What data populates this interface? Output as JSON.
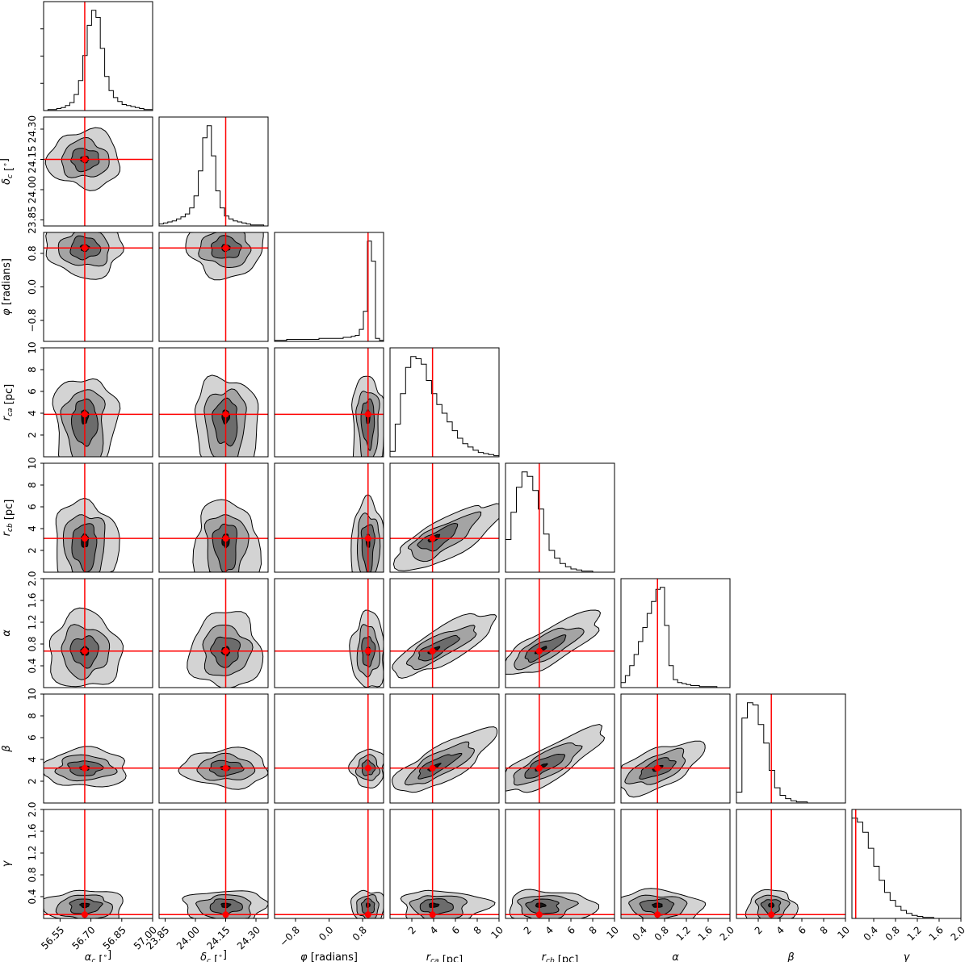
{
  "chart_data": {
    "type": "corner",
    "title": "",
    "parameters": [
      {
        "key": "ac",
        "label": "α_c [°]",
        "range": [
          56.47,
          57.0
        ],
        "ticks": [
          56.55,
          56.7,
          56.85,
          57.0
        ],
        "tick_labels": [
          "56.55",
          "56.70",
          "56.85",
          "57.00"
        ],
        "truth": 56.67
      },
      {
        "key": "dc",
        "label": "δ_c [°]",
        "range": [
          23.82,
          24.36
        ],
        "ticks": [
          23.85,
          24.0,
          24.15,
          24.3
        ],
        "tick_labels": [
          "23.85",
          "24.00",
          "24.15",
          "24.30"
        ],
        "truth": 24.15
      },
      {
        "key": "phi",
        "label": "φ [radians]",
        "range": [
          -1.3,
          1.3
        ],
        "ticks": [
          -0.8,
          0.0,
          0.8
        ],
        "tick_labels": [
          "−0.8",
          "0.0",
          "0.8"
        ],
        "truth": 0.93
      },
      {
        "key": "rca",
        "label": "r_ca [pc]",
        "range": [
          0,
          10
        ],
        "ticks": [
          2,
          4,
          6,
          8,
          10
        ],
        "tick_labels": [
          "2",
          "4",
          "6",
          "8",
          "10"
        ],
        "truth": 3.9
      },
      {
        "key": "rcb",
        "label": "r_cb [pc]",
        "range": [
          0,
          10
        ],
        "ticks": [
          2,
          4,
          6,
          8,
          10
        ],
        "tick_labels": [
          "2",
          "4",
          "6",
          "8",
          "10"
        ],
        "truth": 3.1
      },
      {
        "key": "al",
        "label": "α",
        "range": [
          0,
          2
        ],
        "ticks": [
          0.4,
          0.8,
          1.2,
          1.6,
          2.0
        ],
        "tick_labels": [
          "0.4",
          "0.8",
          "1.2",
          "1.6",
          "2.0"
        ],
        "truth": 0.67
      },
      {
        "key": "be",
        "label": "β",
        "range": [
          0,
          10
        ],
        "ticks": [
          2,
          4,
          6,
          8,
          10
        ],
        "tick_labels": [
          "2",
          "4",
          "6",
          "8",
          "10"
        ],
        "truth": 3.2
      },
      {
        "key": "ga",
        "label": "γ",
        "range": [
          0,
          2
        ],
        "ticks": [
          0.4,
          0.8,
          1.2,
          1.6,
          2.0
        ],
        "tick_labels": [
          "0.4",
          "0.8",
          "1.2",
          "1.6",
          "2.0"
        ],
        "truth": 0.07
      }
    ],
    "histograms": {
      "ac": [
        0,
        1,
        1,
        2,
        3,
        5,
        8,
        16,
        30,
        55,
        85,
        100,
        93,
        62,
        34,
        20,
        13,
        9,
        6,
        5,
        4,
        3,
        2,
        1,
        1
      ],
      "dc": [
        2,
        3,
        4,
        5,
        7,
        9,
        12,
        18,
        30,
        55,
        88,
        100,
        70,
        35,
        18,
        10,
        7,
        5,
        4,
        3,
        2,
        1,
        1,
        1,
        0
      ],
      "phi": [
        1,
        1,
        1,
        2,
        2,
        2,
        2,
        2,
        2,
        2,
        2,
        3,
        3,
        3,
        3,
        3,
        3,
        4,
        4,
        5,
        6,
        12,
        30,
        100,
        80,
        3,
        1
      ],
      "rca": [
        5,
        30,
        58,
        82,
        92,
        90,
        85,
        70,
        58,
        48,
        40,
        32,
        24,
        17,
        12,
        9,
        6,
        4,
        3,
        2,
        1
      ],
      "rcb": [
        30,
        55,
        78,
        92,
        88,
        75,
        58,
        35,
        20,
        13,
        8,
        5,
        3,
        2,
        1,
        1,
        0,
        0,
        0,
        0
      ],
      "al": [
        5,
        12,
        22,
        33,
        46,
        60,
        74,
        86,
        98,
        100,
        62,
        22,
        8,
        5,
        4,
        3,
        2,
        2,
        1,
        1,
        1,
        1,
        0,
        0,
        0
      ],
      "be": [
        10,
        78,
        92,
        90,
        72,
        55,
        30,
        14,
        7,
        4,
        2,
        1,
        1,
        0,
        0,
        0,
        0,
        0,
        0,
        0
      ],
      "ga": [
        100,
        96,
        86,
        70,
        52,
        38,
        26,
        18,
        12,
        8,
        5,
        3,
        2,
        1,
        1,
        0,
        0,
        0,
        0,
        0
      ]
    },
    "credible_levels": [
      0.12,
      0.39,
      0.68,
      0.86
    ],
    "contour_fill_colors": [
      "#d3d3d3",
      "#a4a4a4",
      "#6c6c6c",
      "#151515"
    ],
    "truth_color": "#ff0000"
  }
}
